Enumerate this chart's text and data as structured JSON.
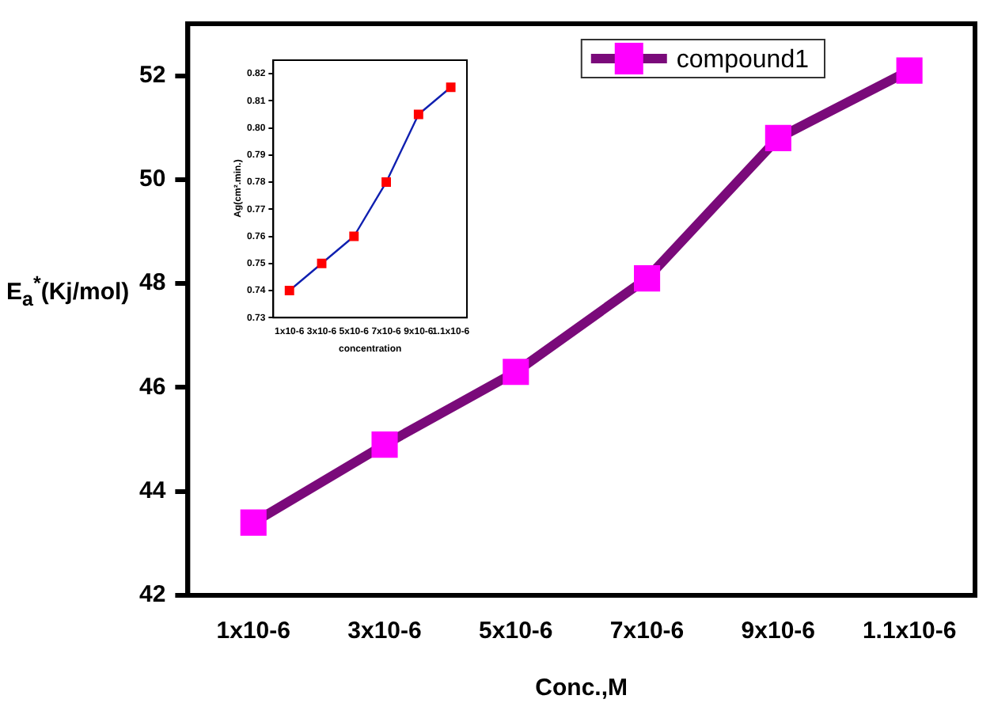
{
  "chart_data": [
    {
      "type": "line",
      "xlabel": "Conc.,M",
      "ylabel": "E$_{a}$$^{*}$(Kj/mol)",
      "categories": [
        "1x10-6",
        "3x10-6",
        "5x10-6",
        "7x10-6",
        "9x10-6",
        "1.1x10-6"
      ],
      "series": [
        {
          "name": "compound1",
          "color": "#7a0a7a",
          "colors": [
            "#ff00ff",
            "#ff00ff",
            "#ff00ff",
            "#ff00ff",
            "#ff00ff",
            "#ff00ff"
          ],
          "values": [
            43.4,
            44.9,
            46.3,
            48.1,
            50.8,
            52.1
          ]
        }
      ],
      "ylim": [
        42,
        53
      ],
      "yticks": [
        42,
        44,
        46,
        48,
        50,
        52
      ],
      "grid": false,
      "legend": "top right",
      "marker": "square",
      "line_style": "solid"
    },
    {
      "type": "line",
      "xlabel": "concentration",
      "ylabel": "Ag(cm².min.)",
      "categories": [
        "1x10-6",
        "3x10-6",
        "5x10-6",
        "7x10-6",
        "9x10-6",
        "1.1x10-6"
      ],
      "series": [
        {
          "color": "#1020b0",
          "colors": [
            "#ff0000",
            "#ff0000",
            "#ff0000",
            "#ff0000",
            "#ff0000",
            "#ff0000"
          ],
          "values": [
            0.74,
            0.75,
            0.76,
            0.78,
            0.805,
            0.815
          ]
        }
      ],
      "ylim": [
        0.73,
        0.825
      ],
      "yticks": [
        0.73,
        0.74,
        0.75,
        0.76,
        0.77,
        0.78,
        0.79,
        {
          "value": 0.8,
          "label": "0.80"
        },
        0.81,
        0.82
      ],
      "grid": false,
      "legend": false,
      "marker": "square",
      "line_style": "solid"
    }
  ]
}
